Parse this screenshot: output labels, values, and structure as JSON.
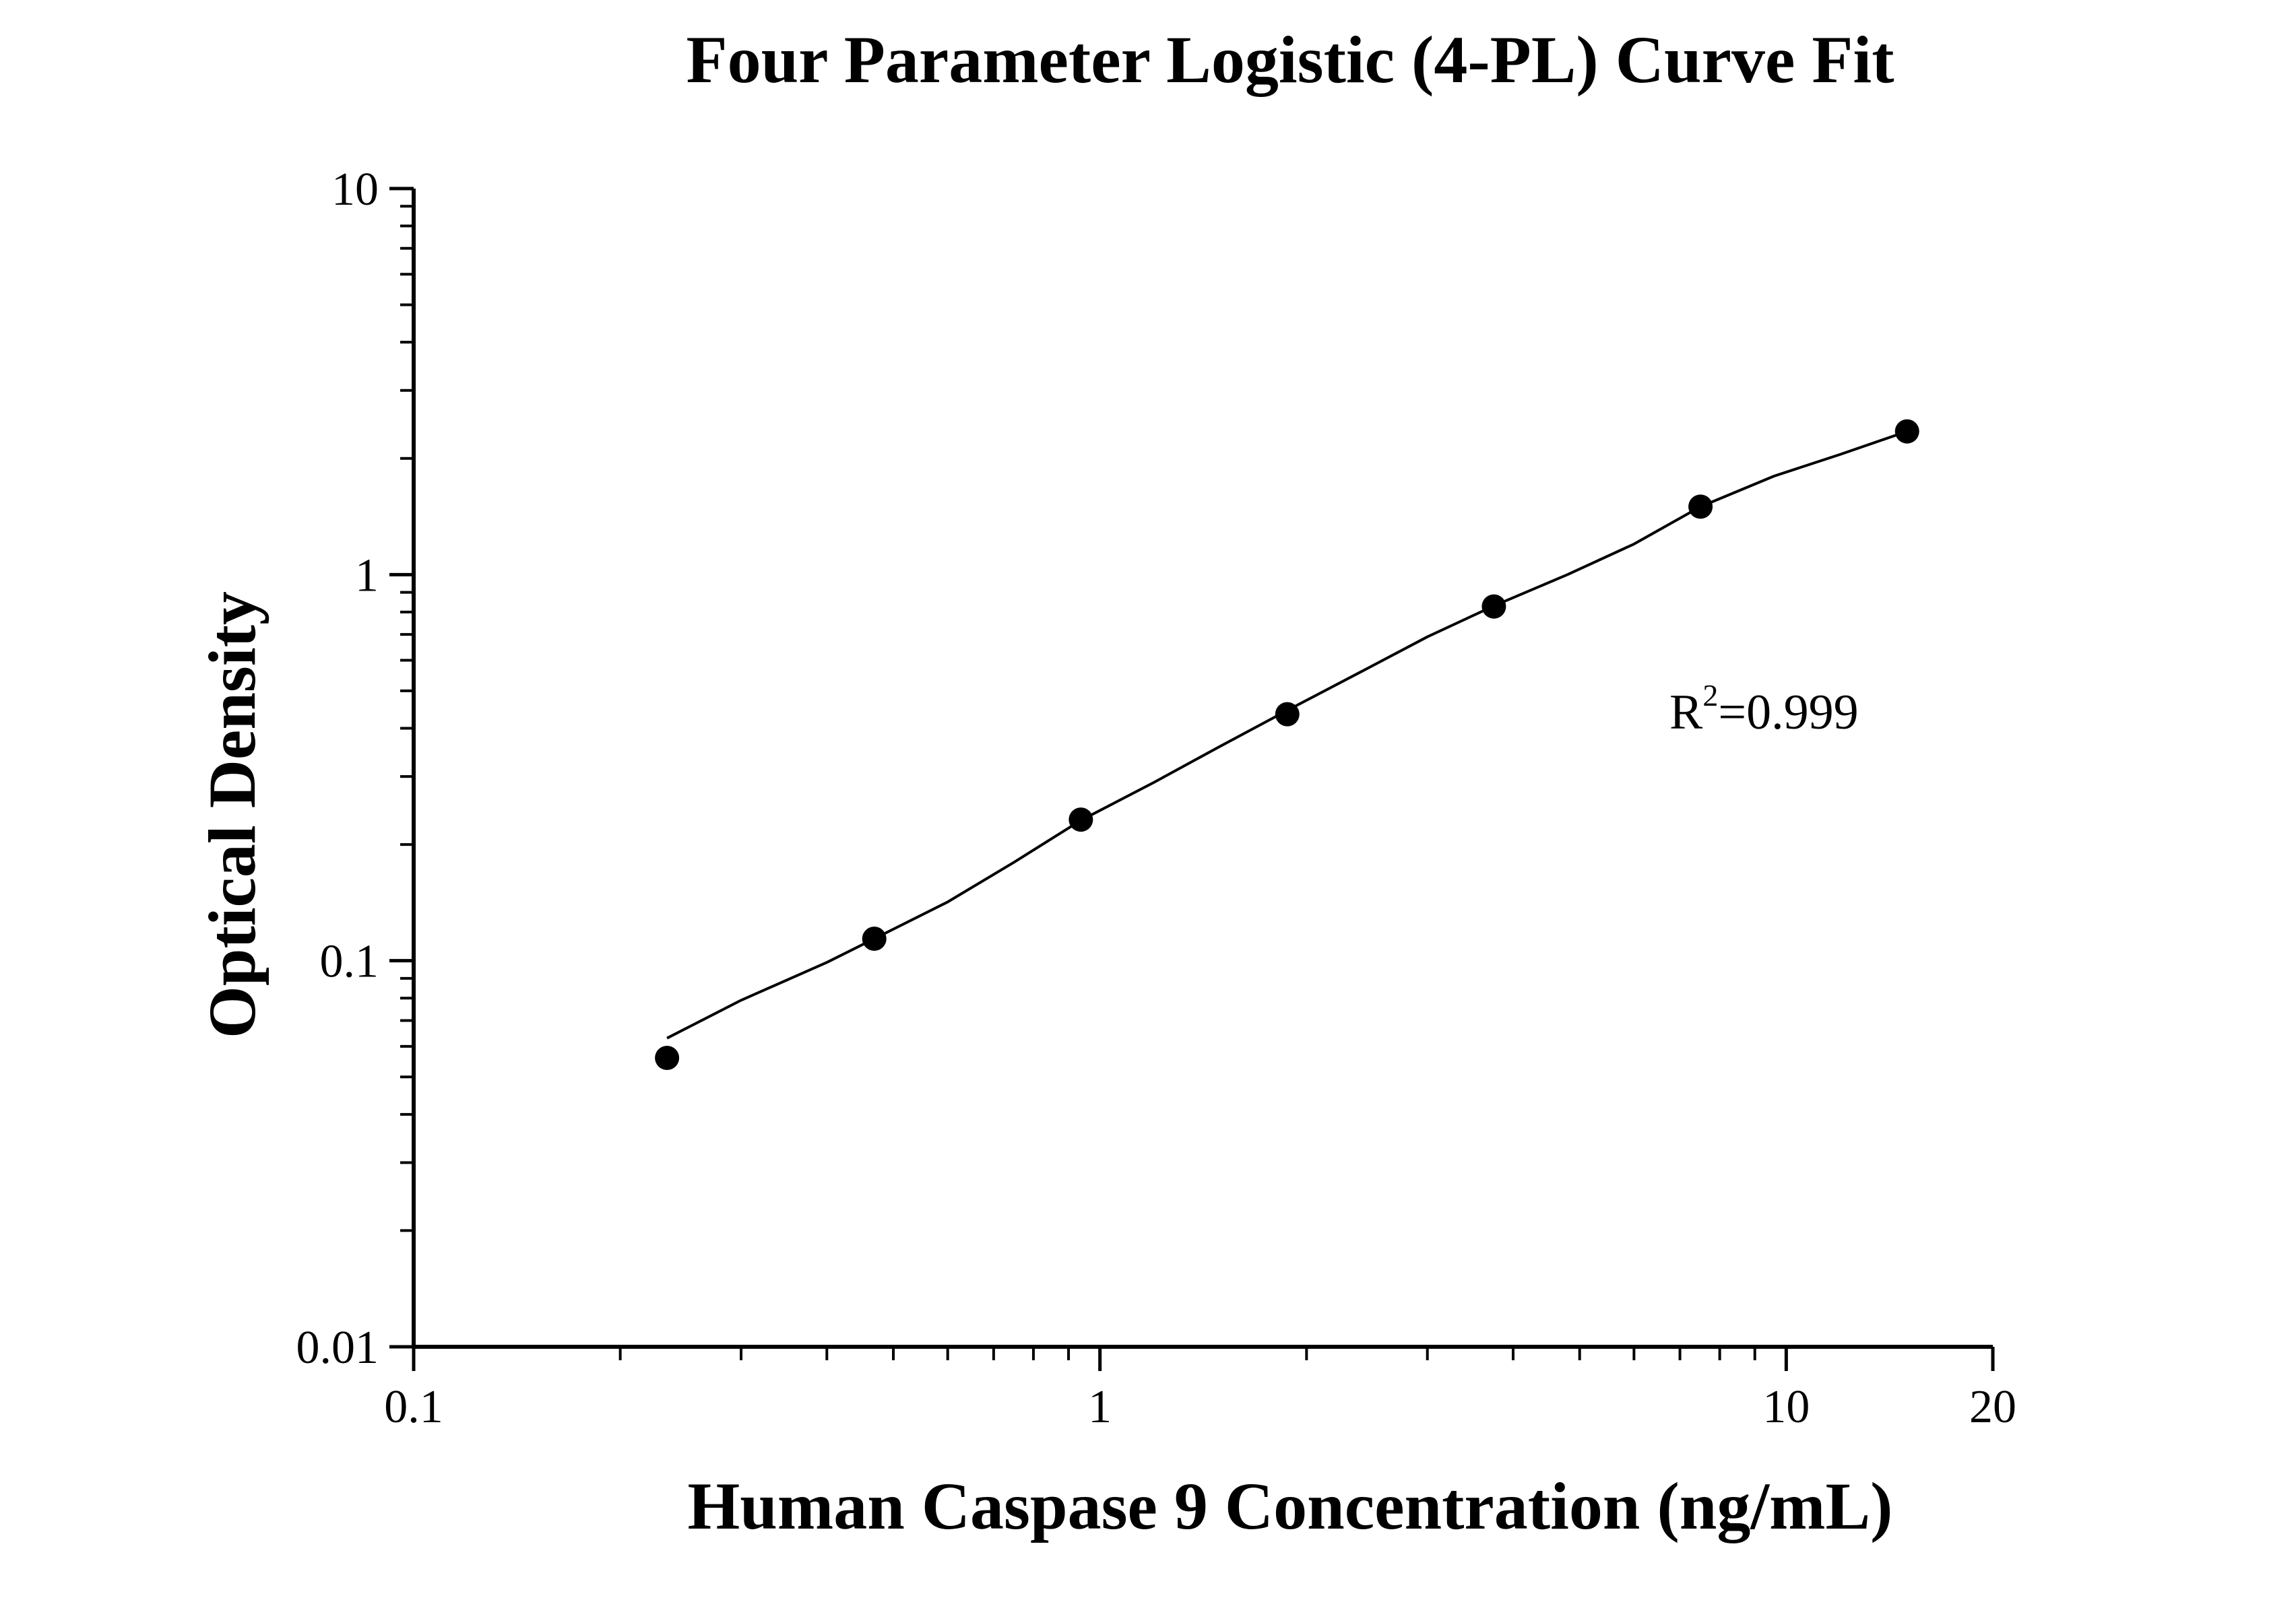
{
  "chart_data": {
    "type": "scatter",
    "title": "Four Parameter Logistic (4-PL) Curve Fit",
    "xlabel": "Human Caspase 9 Concentration (ng/mL)",
    "ylabel": "Optical Density",
    "x_scale": "log",
    "y_scale": "log",
    "xlim": [
      0.1,
      20
    ],
    "ylim": [
      0.01,
      10
    ],
    "x_ticks": [
      {
        "value": 0.1,
        "label": "0.1"
      },
      {
        "value": 1,
        "label": "1"
      },
      {
        "value": 10,
        "label": "10"
      },
      {
        "value": 20,
        "label": "20"
      }
    ],
    "y_ticks": [
      {
        "value": 0.01,
        "label": "0.01"
      },
      {
        "value": 0.1,
        "label": "0.1"
      },
      {
        "value": 1,
        "label": "1"
      },
      {
        "value": 10,
        "label": "10"
      }
    ],
    "grid": false,
    "series": [
      {
        "type": "scatter",
        "x": [
          0.234,
          0.469,
          0.938,
          1.875,
          3.75,
          7.5,
          15
        ],
        "y": [
          0.056,
          0.114,
          0.232,
          0.435,
          0.827,
          1.5,
          2.35
        ]
      }
    ],
    "fit_curve": {
      "x": [
        0.234,
        0.3,
        0.4,
        0.469,
        0.6,
        0.75,
        0.938,
        1.2,
        1.5,
        1.875,
        2.4,
        3.0,
        3.75,
        4.8,
        6.0,
        7.5,
        9.6,
        12.0,
        15
      ],
      "y": [
        0.063,
        0.079,
        0.099,
        0.114,
        0.142,
        0.18,
        0.231,
        0.29,
        0.36,
        0.445,
        0.56,
        0.69,
        0.83,
        1.0,
        1.2,
        1.5,
        1.8,
        2.05,
        2.35
      ]
    },
    "annotations": [
      {
        "base": "R",
        "superscript": "2",
        "rest": "=0.999"
      }
    ],
    "colors": {
      "axis": "#000000",
      "marker": "#000000",
      "line": "#000000"
    }
  }
}
